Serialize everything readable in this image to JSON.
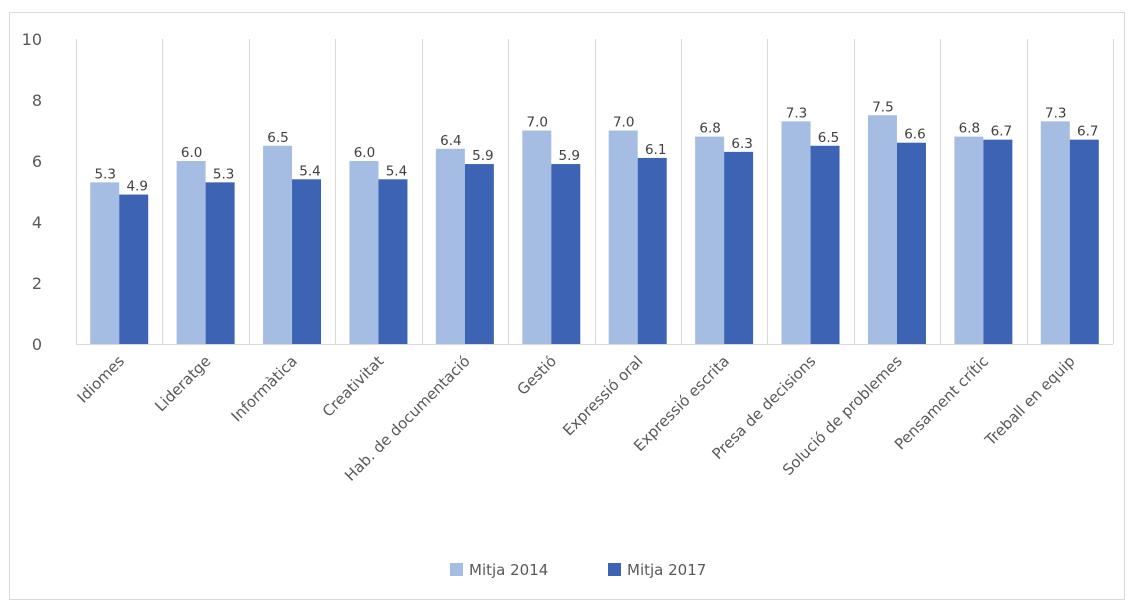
{
  "chart_data": {
    "type": "bar",
    "categories": [
      "Idiomes",
      "Lideratge",
      "Informàtica",
      "Creativitat",
      "Hab. de documentació",
      "Gestió",
      "Expressió oral",
      "Expressió escrita",
      "Presa de decisions",
      "Solució de problemes",
      "Pensament crític",
      "Treball en equip"
    ],
    "series": [
      {
        "name": "Mitja 2014",
        "values": [
          5.3,
          6.0,
          6.5,
          6.0,
          6.4,
          7.0,
          7.0,
          6.8,
          7.3,
          7.5,
          6.8,
          7.3
        ],
        "labels": [
          "5.3",
          "6.0",
          "6.5",
          "6.0",
          "6.4",
          "7.0",
          "7.0",
          "6.8",
          "7.3",
          "7.5",
          "6.8",
          "7.3"
        ],
        "color": "#a6bde3"
      },
      {
        "name": "Mitja 2017",
        "values": [
          4.9,
          5.3,
          5.4,
          5.4,
          5.9,
          5.9,
          6.1,
          6.3,
          6.5,
          6.6,
          6.7,
          6.7
        ],
        "labels": [
          "4.9",
          "5.3",
          "5.4",
          "5.4",
          "5.9",
          "5.9",
          "6.1",
          "6.3",
          "6.5",
          "6.6",
          "6.7",
          "6.7"
        ],
        "color": "#3d64b4"
      }
    ],
    "yticks": [
      "0",
      "2",
      "4",
      "6",
      "8",
      "10"
    ],
    "ylim": [
      0,
      10
    ],
    "grid": "vertical category separators",
    "legend": "bottom-center"
  }
}
